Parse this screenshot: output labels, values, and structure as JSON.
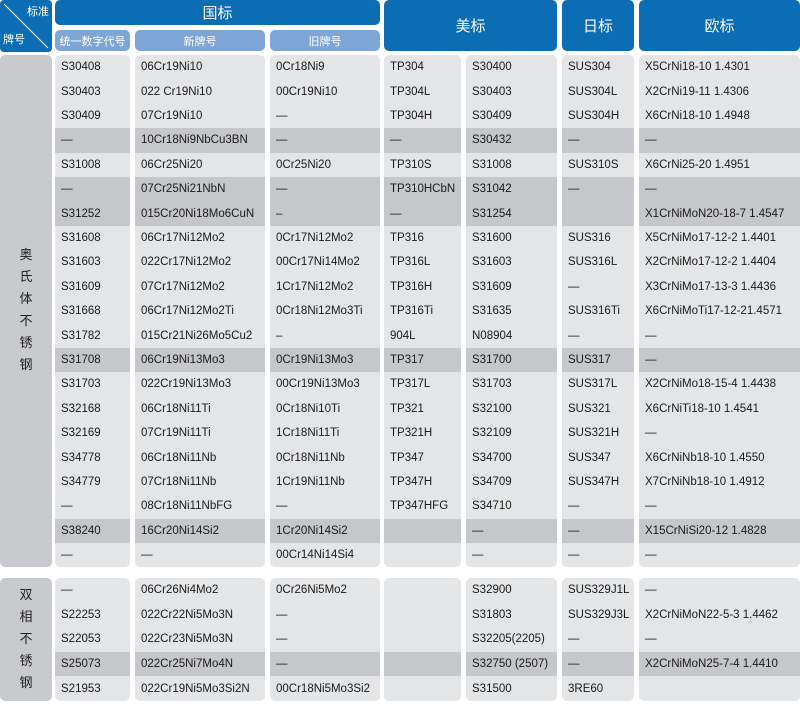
{
  "corner": {
    "top_right": "标准",
    "bottom_left": "牌号"
  },
  "headers": {
    "gb": "国标",
    "us": "美标",
    "jis": "日标",
    "en": "欧标"
  },
  "subheaders": {
    "unified_code": "统一数字代号",
    "new_grade": "新牌号",
    "old_grade": "旧牌号"
  },
  "colors": {
    "header_blue": "#0b6db3",
    "subheader_blue": "#7da6d6",
    "cell": "#e4e5e7",
    "cell_highlight": "#c6c7ca"
  },
  "sections": [
    {
      "label": [
        "奥",
        "氏",
        "体",
        "不",
        "锈",
        "钢"
      ],
      "highlighted_rows": [
        3,
        5,
        6,
        12,
        19
      ],
      "rows": [
        [
          "S30408",
          "06Cr19Ni10",
          "0Cr18Ni9",
          "TP304",
          "S30400",
          "SUS304",
          "X5CrNi18-10 1.4301"
        ],
        [
          "S30403",
          "022 Cr19Ni10",
          "00Cr19Ni10",
          "TP304L",
          "S30403",
          "SUS304L",
          "X2CrNi19-11  1.4306"
        ],
        [
          "S30409",
          "07Cr19Ni10",
          "—",
          "TP304H",
          "S30409",
          "SUS304H",
          "X6CrNi18-10  1.4948"
        ],
        [
          "—",
          "10Cr18Ni9NbCu3BN",
          "—",
          "—",
          "S30432",
          "—",
          "—"
        ],
        [
          "S31008",
          "06Cr25Ni20",
          "0Cr25Ni20",
          "TP310S",
          "S31008",
          "SUS310S",
          "X6CrNi25-20 1.4951"
        ],
        [
          "—",
          "07Cr25Ni21NbN",
          "—",
          "TP310HCbN",
          "S31042",
          "—",
          "—"
        ],
        [
          "S31252",
          "015Cr20Ni18Mo6CuN",
          "–",
          "—",
          "S31254",
          "",
          "X1CrNiMoN20-18-7 1.4547"
        ],
        [
          "S31608",
          "06Cr17Ni12Mo2",
          "0Cr17Ni12Mo2",
          "TP316",
          "S31600",
          "SUS316",
          "X5CrNiMo17-12-2 1.4401"
        ],
        [
          "S31603",
          "022Cr17Ni12Mo2",
          "00Cr17Ni14Mo2",
          "TP316L",
          "S31603",
          "SUS316L",
          "X2CrNiMo17-12-2 1.4404"
        ],
        [
          "S31609",
          "07Cr17Ni12Mo2",
          "1Cr17Ni12Mo2",
          "TP316H",
          "S31609",
          "—",
          "X3CrNiMo17-13-3 1.4436"
        ],
        [
          "S31668",
          "06Cr17Ni12Mo2Ti",
          "0Cr18Ni12Mo3Ti",
          "TP316Ti",
          "S31635",
          "SUS316Ti",
          "X6CrNiMoTi17-12-21.4571"
        ],
        [
          "S31782",
          "015Cr21Ni26Mo5Cu2",
          "–",
          "904L",
          "N08904",
          "—",
          "—"
        ],
        [
          "S31708",
          "06Cr19Ni13Mo3",
          "0Cr19Ni13Mo3",
          "TP317",
          "S31700",
          "SUS317",
          "—"
        ],
        [
          "S31703",
          "022Cr19Ni13Mo3",
          "00Cr19Ni13Mo3",
          "TP317L",
          "S31703",
          "SUS317L",
          "X2CrNiMo18-15-4 1.4438"
        ],
        [
          "S32168",
          "06Cr18Ni11Ti",
          "0Cr18Ni10Ti",
          "TP321",
          "S32100",
          "SUS321",
          "X6CrNiTi18-10 1.4541"
        ],
        [
          "S32169",
          "07Cr19Ni11Ti",
          "1Cr18Ni11Ti",
          "TP321H",
          "S32109",
          "SUS321H",
          "—"
        ],
        [
          "S34778",
          "06Cr18Ni11Nb",
          "0Cr18Ni11Nb",
          "TP347",
          "S34700",
          "SUS347",
          "X6CrNiNb18-10 1.4550"
        ],
        [
          "S34779",
          "07Cr18Ni11Nb",
          "1Cr19Ni11Nb",
          "TP347H",
          "S34709",
          "SUS347H",
          "X7CrNiNb18-10 1.4912"
        ],
        [
          "—",
          "08Cr18Ni11NbFG",
          "—",
          "TP347HFG",
          "S34710",
          "—",
          "—"
        ],
        [
          "S38240",
          "16Cr20Ni14Si2",
          "1Cr20Ni14Si2",
          "",
          "—",
          "—",
          "X15CrNiSi20-12 1.4828"
        ],
        [
          "—",
          "—",
          "00Cr14Ni14Si4",
          "",
          "—",
          "—",
          "—"
        ]
      ]
    },
    {
      "label": [
        "双",
        "相",
        "不",
        "锈",
        "钢"
      ],
      "highlighted_rows": [
        3
      ],
      "rows": [
        [
          "—",
          "06Cr26Ni4Mo2",
          "0Cr26Ni5Mo2",
          "",
          "S32900",
          "SUS329J1L",
          "—"
        ],
        [
          "S22253",
          "022Cr22Ni5Mo3N",
          "—",
          "",
          "S31803",
          "SUS329J3L",
          "X2CrNiMoN22-5-3 1.4462"
        ],
        [
          "S22053",
          "022Cr23Ni5Mo3N",
          "—",
          "",
          "S32205(2205)",
          "—",
          "—"
        ],
        [
          "S25073",
          "022Cr25Ni7Mo4N",
          "—",
          "",
          "S32750 (2507)",
          "—",
          "X2CrNiMoN25-7-4 1.4410"
        ],
        [
          "S21953",
          "022Cr19Ni5Mo3Si2N",
          "00Cr18Ni5Mo3Si2",
          "",
          "S31500",
          "3RE60",
          ""
        ]
      ]
    }
  ]
}
